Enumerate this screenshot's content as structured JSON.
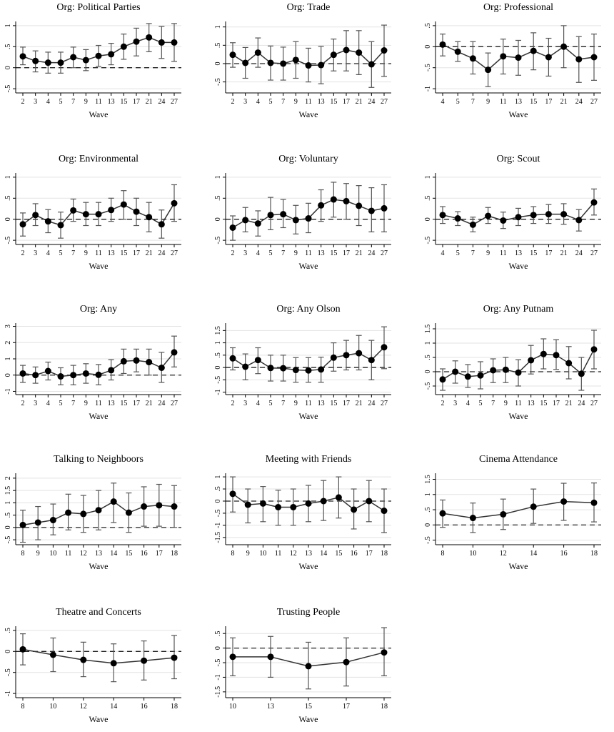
{
  "chart_data": [
    {
      "type": "line",
      "title": "Org: Political Parties",
      "xlabel": "Wave",
      "x": [
        "2",
        "3",
        "4",
        "5",
        "7",
        "9",
        "11",
        "13",
        "15",
        "17",
        "21",
        "24",
        "27"
      ],
      "y": [
        0.27,
        0.16,
        0.12,
        0.12,
        0.25,
        0.18,
        0.28,
        0.32,
        0.5,
        0.62,
        0.72,
        0.6,
        0.6
      ],
      "ci_low": [
        0.07,
        -0.1,
        -0.13,
        -0.13,
        0.0,
        -0.07,
        0.03,
        0.07,
        0.2,
        0.28,
        0.38,
        0.22,
        0.15
      ],
      "ci_high": [
        0.49,
        0.4,
        0.37,
        0.37,
        0.49,
        0.43,
        0.53,
        0.58,
        0.8,
        0.94,
        1.05,
        0.98,
        1.05
      ],
      "y_ticks": [
        "1",
        ".5",
        "0",
        "-.5"
      ],
      "ylim": [
        -0.6,
        1.1
      ]
    },
    {
      "type": "line",
      "title": "Org: Trade",
      "xlabel": "Wave",
      "x": [
        "2",
        "3",
        "4",
        "5",
        "7",
        "9",
        "11",
        "13",
        "15",
        "17",
        "21",
        "24",
        "27"
      ],
      "y": [
        0.24,
        0.02,
        0.3,
        0.02,
        0.0,
        0.1,
        -0.05,
        -0.04,
        0.24,
        0.37,
        0.3,
        -0.02,
        0.36
      ],
      "ci_low": [
        -0.1,
        -0.4,
        -0.1,
        -0.45,
        -0.45,
        -0.4,
        -0.5,
        -0.55,
        -0.2,
        -0.2,
        -0.3,
        -0.65,
        -0.35
      ],
      "ci_high": [
        0.57,
        0.44,
        0.7,
        0.48,
        0.45,
        0.6,
        0.42,
        0.47,
        0.67,
        0.9,
        0.9,
        0.6,
        1.05
      ],
      "y_ticks": [
        "1",
        ".5",
        "0",
        "-.5"
      ],
      "ylim": [
        -0.8,
        1.15
      ]
    },
    {
      "type": "line",
      "title": "Org: Professional",
      "xlabel": "Wave",
      "x": [
        "4",
        "5",
        "7",
        "9",
        "11",
        "13",
        "15",
        "17",
        "21",
        "24",
        "27"
      ],
      "y": [
        0.05,
        -0.12,
        -0.28,
        -0.55,
        -0.23,
        -0.26,
        -0.1,
        -0.25,
        0.0,
        -0.3,
        -0.25
      ],
      "ci_low": [
        -0.22,
        -0.35,
        -0.65,
        -0.95,
        -0.65,
        -0.68,
        -0.55,
        -0.7,
        -0.5,
        -0.85,
        -0.8
      ],
      "ci_high": [
        0.3,
        0.12,
        0.12,
        -0.15,
        0.18,
        0.15,
        0.33,
        0.2,
        0.5,
        0.24,
        0.3
      ],
      "y_ticks": [
        ".5",
        "0",
        "-.5",
        "-1"
      ],
      "ylim": [
        -1.1,
        0.6
      ]
    },
    {
      "type": "line",
      "title": "Org: Environmental",
      "xlabel": "Wave",
      "x": [
        "2",
        "3",
        "4",
        "5",
        "7",
        "9",
        "11",
        "13",
        "15",
        "17",
        "21",
        "24",
        "27"
      ],
      "y": [
        -0.12,
        0.1,
        -0.05,
        -0.14,
        0.21,
        0.12,
        0.12,
        0.22,
        0.35,
        0.18,
        0.05,
        -0.12,
        0.38
      ],
      "ci_low": [
        -0.4,
        -0.15,
        -0.32,
        -0.45,
        -0.05,
        -0.15,
        -0.15,
        -0.05,
        0.0,
        -0.15,
        -0.3,
        -0.45,
        -0.05
      ],
      "ci_high": [
        0.15,
        0.37,
        0.23,
        0.17,
        0.48,
        0.4,
        0.4,
        0.5,
        0.68,
        0.5,
        0.4,
        0.22,
        0.82
      ],
      "y_ticks": [
        "1",
        ".5",
        "0",
        "-.5"
      ],
      "ylim": [
        -0.6,
        1.1
      ]
    },
    {
      "type": "line",
      "title": "Org: Voluntary",
      "xlabel": "Wave",
      "x": [
        "2",
        "3",
        "4",
        "5",
        "7",
        "9",
        "11",
        "13",
        "15",
        "17",
        "21",
        "24",
        "27"
      ],
      "y": [
        -0.2,
        -0.02,
        -0.1,
        0.1,
        0.12,
        -0.02,
        0.02,
        0.33,
        0.47,
        0.43,
        0.32,
        0.2,
        0.26
      ],
      "ci_low": [
        -0.5,
        -0.3,
        -0.4,
        -0.25,
        -0.2,
        -0.35,
        -0.32,
        -0.05,
        0.05,
        0.0,
        -0.15,
        -0.3,
        -0.3
      ],
      "ci_high": [
        0.08,
        0.28,
        0.2,
        0.52,
        0.47,
        0.33,
        0.38,
        0.7,
        0.88,
        0.85,
        0.8,
        0.75,
        0.82
      ],
      "y_ticks": [
        "1",
        ".5",
        "0",
        "-.5"
      ],
      "ylim": [
        -0.6,
        1.1
      ]
    },
    {
      "type": "line",
      "title": "Org: Scout",
      "xlabel": "Wave",
      "x": [
        "4",
        "5",
        "7",
        "9",
        "11",
        "13",
        "15",
        "17",
        "21",
        "24",
        "27"
      ],
      "y": [
        0.1,
        0.02,
        -0.13,
        0.08,
        -0.03,
        0.05,
        0.1,
        0.12,
        0.12,
        -0.02,
        0.4
      ],
      "ci_low": [
        -0.1,
        -0.15,
        -0.3,
        -0.1,
        -0.22,
        -0.15,
        -0.1,
        -0.1,
        -0.12,
        -0.28,
        0.1
      ],
      "ci_high": [
        0.3,
        0.18,
        0.05,
        0.28,
        0.17,
        0.26,
        0.3,
        0.35,
        0.37,
        0.23,
        0.72
      ],
      "y_ticks": [
        "1",
        ".5",
        "0",
        "-.5"
      ],
      "ylim": [
        -0.6,
        1.1
      ]
    },
    {
      "type": "line",
      "title": "Org: Any",
      "xlabel": "Wave",
      "x": [
        "2",
        "3",
        "4",
        "5",
        "7",
        "9",
        "11",
        "13",
        "15",
        "17",
        "21",
        "24",
        "27"
      ],
      "y": [
        0.1,
        0.0,
        0.25,
        -0.08,
        0.0,
        0.1,
        0.02,
        0.3,
        0.85,
        0.9,
        0.8,
        0.45,
        1.4
      ],
      "ci_low": [
        -0.45,
        -0.5,
        -0.3,
        -0.6,
        -0.6,
        -0.5,
        -0.6,
        -0.3,
        0.1,
        0.2,
        0.0,
        -0.45,
        0.5
      ],
      "ci_high": [
        0.6,
        0.5,
        0.8,
        0.45,
        0.6,
        0.7,
        0.65,
        0.95,
        1.6,
        1.6,
        1.6,
        1.4,
        2.4
      ],
      "y_ticks": [
        "3",
        "2",
        "1",
        "0",
        "-1"
      ],
      "ylim": [
        -1.2,
        3.2
      ]
    },
    {
      "type": "line",
      "title": "Org: Any Olson",
      "xlabel": "Wave",
      "x": [
        "2",
        "3",
        "4",
        "5",
        "7",
        "9",
        "11",
        "13",
        "15",
        "17",
        "21",
        "24",
        "27"
      ],
      "y": [
        0.37,
        0.03,
        0.3,
        -0.02,
        -0.03,
        -0.1,
        -0.12,
        -0.08,
        0.4,
        0.5,
        0.58,
        0.3,
        0.82
      ],
      "ci_low": [
        -0.1,
        -0.5,
        -0.25,
        -0.55,
        -0.55,
        -0.6,
        -0.6,
        -0.6,
        -0.15,
        -0.1,
        -0.1,
        -0.5,
        -0.05
      ],
      "ci_high": [
        0.8,
        0.55,
        0.8,
        0.5,
        0.5,
        0.4,
        0.4,
        0.42,
        1.0,
        1.1,
        1.3,
        1.1,
        1.65
      ],
      "y_ticks": [
        "1.5",
        "1",
        ".5",
        "0",
        "-.5",
        "-1"
      ],
      "ylim": [
        -1.1,
        1.8
      ]
    },
    {
      "type": "line",
      "title": "Org: Any Putnam",
      "xlabel": "Wave",
      "x": [
        "2",
        "3",
        "4",
        "5",
        "7",
        "9",
        "11",
        "13",
        "15",
        "17",
        "21",
        "24",
        "27"
      ],
      "y": [
        -0.27,
        0.0,
        -0.17,
        -0.13,
        0.05,
        0.07,
        -0.03,
        0.4,
        0.62,
        0.58,
        0.3,
        -0.07,
        0.78
      ],
      "ci_low": [
        -0.65,
        -0.4,
        -0.55,
        -0.6,
        -0.38,
        -0.38,
        -0.5,
        -0.08,
        0.1,
        0.08,
        -0.25,
        -0.65,
        0.1
      ],
      "ci_high": [
        0.1,
        0.38,
        0.25,
        0.35,
        0.45,
        0.5,
        0.42,
        0.92,
        1.15,
        1.12,
        0.88,
        0.5,
        1.45
      ],
      "y_ticks": [
        "1.5",
        "1",
        ".5",
        "0",
        "-.5"
      ],
      "ylim": [
        -0.8,
        1.7
      ]
    },
    {
      "type": "line",
      "title": "Talking to Neighboors",
      "xlabel": "Wave",
      "x": [
        "8",
        "9",
        "10",
        "11",
        "12",
        "13",
        "14",
        "15",
        "16",
        "17",
        "18"
      ],
      "y": [
        0.1,
        0.2,
        0.3,
        0.6,
        0.55,
        0.7,
        1.05,
        0.6,
        0.85,
        0.9,
        0.85
      ],
      "ci_low": [
        -0.6,
        -0.5,
        -0.3,
        -0.1,
        -0.2,
        -0.1,
        0.2,
        -0.2,
        0.05,
        0.05,
        0.0
      ],
      "ci_high": [
        0.7,
        0.85,
        0.95,
        1.35,
        1.3,
        1.5,
        1.8,
        1.4,
        1.65,
        1.75,
        1.7
      ],
      "y_ticks": [
        "2",
        "1.5",
        "1",
        ".5",
        "0",
        "-.5"
      ],
      "ylim": [
        -0.7,
        2.2
      ]
    },
    {
      "type": "line",
      "title": "Meeting with Friends",
      "xlabel": "Wave",
      "x": [
        "8",
        "9",
        "10",
        "11",
        "12",
        "13",
        "14",
        "15",
        "16",
        "17",
        "18"
      ],
      "y": [
        0.3,
        -0.15,
        -0.1,
        -0.25,
        -0.25,
        -0.1,
        0.0,
        0.15,
        -0.35,
        0.0,
        -0.4
      ],
      "ci_low": [
        -0.45,
        -0.9,
        -0.85,
        -1.0,
        -1.0,
        -0.85,
        -0.8,
        -0.7,
        -1.15,
        -0.85,
        -1.3
      ],
      "ci_high": [
        1.0,
        0.5,
        0.6,
        0.45,
        0.5,
        0.65,
        0.85,
        1.0,
        0.5,
        0.85,
        0.5
      ],
      "y_ticks": [
        "1",
        ".5",
        "0",
        "-.5",
        "-1",
        "-1.5"
      ],
      "ylim": [
        -1.8,
        1.15
      ]
    },
    {
      "type": "line",
      "title": "Cinema Attendance",
      "xlabel": "Wave",
      "x": [
        "8",
        "10",
        "12",
        "14",
        "16",
        "18"
      ],
      "y": [
        0.38,
        0.23,
        0.35,
        0.6,
        0.77,
        0.73
      ],
      "ci_low": [
        -0.08,
        -0.25,
        -0.15,
        0.05,
        0.15,
        0.1
      ],
      "ci_high": [
        0.82,
        0.72,
        0.85,
        1.18,
        1.37,
        1.38
      ],
      "y_ticks": [
        "1.5",
        "1",
        ".5",
        "0",
        "-.5"
      ],
      "ylim": [
        -0.65,
        1.7
      ]
    },
    {
      "type": "line",
      "title": "Theatre and Concerts",
      "xlabel": "Wave",
      "x": [
        "8",
        "10",
        "12",
        "14",
        "16",
        "18"
      ],
      "y": [
        0.05,
        -0.08,
        -0.2,
        -0.28,
        -0.22,
        -0.15
      ],
      "ci_low": [
        -0.32,
        -0.48,
        -0.6,
        -0.72,
        -0.68,
        -0.65
      ],
      "ci_high": [
        0.42,
        0.32,
        0.22,
        0.18,
        0.25,
        0.38
      ],
      "y_ticks": [
        ".5",
        "0",
        "-.5",
        "-1"
      ],
      "ylim": [
        -1.1,
        0.6
      ]
    },
    {
      "type": "line",
      "title": "Trusting People",
      "xlabel": "Wave",
      "x": [
        "10",
        "13",
        "15",
        "17",
        "18"
      ],
      "y": [
        -0.3,
        -0.3,
        -0.62,
        -0.48,
        -0.15
      ],
      "ci_low": [
        -0.95,
        -1.0,
        -1.4,
        -1.3,
        -0.95
      ],
      "ci_high": [
        0.35,
        0.4,
        0.2,
        0.35,
        0.7
      ],
      "y_ticks": [
        ".5",
        "0",
        "-.5",
        "-1",
        "-1.5"
      ],
      "ylim": [
        -1.7,
        0.75
      ]
    }
  ]
}
